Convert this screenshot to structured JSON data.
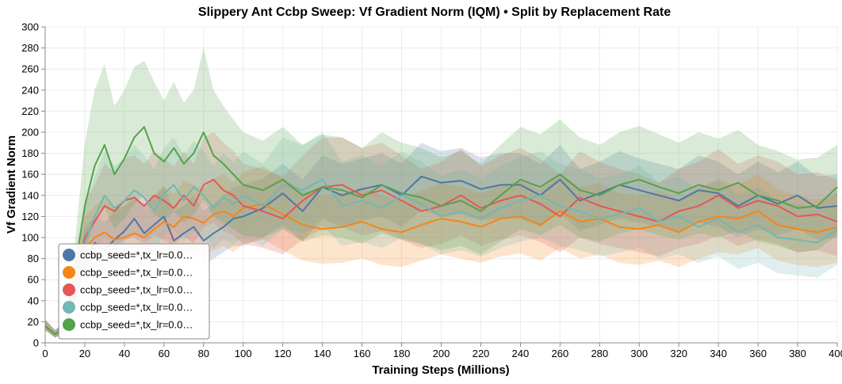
{
  "chart_data": {
    "type": "line",
    "title": "Slippery Ant Ccbp Sweep: Vf Gradient Norm (IQM) • Split by Replacement Rate",
    "xlabel": "Training Steps (Millions)",
    "ylabel": "Vf Gradient Norm",
    "xlim": [
      0,
      400
    ],
    "ylim": [
      0,
      300
    ],
    "x_ticks": [
      "0",
      "20",
      "40",
      "60",
      "80",
      "100",
      "120",
      "140",
      "160",
      "180",
      "200",
      "220",
      "240",
      "260",
      "280",
      "300",
      "320",
      "340",
      "360",
      "380",
      "400"
    ],
    "y_ticks": [
      "0",
      "20",
      "40",
      "60",
      "80",
      "100",
      "120",
      "140",
      "160",
      "180",
      "200",
      "220",
      "240",
      "260",
      "280",
      "300"
    ],
    "grid": true,
    "legend_position": "bottom-left",
    "series": [
      {
        "name": "ccbp_seed=*,tx_lr=0.0…",
        "color": "#4c78a8",
        "x": [
          0,
          5,
          10,
          15,
          20,
          25,
          30,
          35,
          40,
          45,
          50,
          55,
          60,
          65,
          70,
          75,
          80,
          85,
          90,
          95,
          100,
          110,
          120,
          130,
          140,
          150,
          160,
          170,
          180,
          190,
          200,
          210,
          220,
          230,
          240,
          250,
          260,
          270,
          280,
          290,
          300,
          310,
          320,
          330,
          340,
          350,
          360,
          370,
          380,
          390,
          400
        ],
        "values": [
          16,
          8,
          15,
          45,
          75,
          95,
          88,
          98,
          106,
          118,
          104,
          112,
          120,
          97,
          104,
          110,
          97,
          104,
          110,
          118,
          120,
          128,
          142,
          125,
          148,
          140,
          146,
          150,
          140,
          158,
          152,
          154,
          146,
          150,
          150,
          140,
          155,
          135,
          142,
          150,
          145,
          140,
          135,
          145,
          142,
          130,
          140,
          132,
          140,
          128,
          130
        ],
        "upper": [
          22,
          12,
          20,
          60,
          110,
          120,
          115,
          125,
          130,
          140,
          130,
          138,
          150,
          125,
          130,
          140,
          125,
          132,
          140,
          148,
          150,
          156,
          170,
          155,
          178,
          170,
          175,
          180,
          170,
          190,
          182,
          185,
          176,
          180,
          180,
          170,
          188,
          165,
          172,
          182,
          175,
          170,
          165,
          178,
          172,
          160,
          172,
          162,
          172,
          158,
          160
        ],
        "lower": [
          12,
          5,
          10,
          30,
          50,
          72,
          68,
          76,
          82,
          92,
          80,
          88,
          95,
          74,
          80,
          85,
          74,
          80,
          86,
          92,
          92,
          100,
          112,
          96,
          118,
          110,
          116,
          120,
          110,
          126,
          120,
          122,
          116,
          118,
          118,
          110,
          124,
          106,
          112,
          118,
          114,
          110,
          105,
          114,
          110,
          100,
          108,
          102,
          108,
          98,
          100
        ]
      },
      {
        "name": "ccbp_seed=*,tx_lr=0.0…",
        "color": "#f58518",
        "x": [
          0,
          5,
          10,
          15,
          20,
          25,
          30,
          35,
          40,
          45,
          50,
          55,
          60,
          65,
          70,
          75,
          80,
          85,
          90,
          95,
          100,
          110,
          120,
          130,
          140,
          150,
          160,
          170,
          180,
          190,
          200,
          210,
          220,
          230,
          240,
          250,
          260,
          270,
          280,
          290,
          300,
          310,
          320,
          330,
          340,
          350,
          360,
          370,
          380,
          390,
          400
        ],
        "values": [
          16,
          8,
          15,
          55,
          90,
          100,
          105,
          98,
          100,
          104,
          100,
          108,
          115,
          110,
          120,
          118,
          114,
          122,
          125,
          120,
          128,
          132,
          122,
          112,
          108,
          110,
          115,
          108,
          105,
          112,
          118,
          115,
          110,
          118,
          120,
          112,
          125,
          115,
          118,
          110,
          108,
          112,
          105,
          115,
          120,
          118,
          125,
          112,
          108,
          105,
          110
        ],
        "upper": [
          22,
          12,
          20,
          75,
          120,
          130,
          138,
          128,
          130,
          136,
          130,
          140,
          148,
          142,
          154,
          150,
          146,
          156,
          160,
          152,
          162,
          168,
          156,
          145,
          140,
          142,
          148,
          140,
          136,
          145,
          152,
          148,
          142,
          150,
          154,
          145,
          160,
          148,
          152,
          142,
          140,
          145,
          136,
          148,
          154,
          150,
          160,
          146,
          140,
          136,
          142
        ],
        "lower": [
          12,
          5,
          10,
          38,
          65,
          72,
          76,
          70,
          72,
          76,
          72,
          78,
          84,
          80,
          88,
          86,
          82,
          88,
          92,
          86,
          94,
          98,
          88,
          78,
          75,
          76,
          80,
          74,
          72,
          78,
          84,
          80,
          76,
          82,
          85,
          78,
          90,
          80,
          84,
          76,
          74,
          78,
          72,
          80,
          86,
          84,
          90,
          78,
          74,
          72,
          76
        ]
      },
      {
        "name": "ccbp_seed=*,tx_lr=0.0…",
        "color": "#e45756",
        "x": [
          0,
          5,
          10,
          15,
          20,
          25,
          30,
          35,
          40,
          45,
          50,
          55,
          60,
          65,
          70,
          75,
          80,
          85,
          90,
          95,
          100,
          110,
          120,
          130,
          140,
          150,
          160,
          170,
          180,
          190,
          200,
          210,
          220,
          230,
          240,
          250,
          260,
          270,
          280,
          290,
          300,
          310,
          320,
          330,
          340,
          350,
          360,
          370,
          380,
          390,
          400
        ],
        "values": [
          16,
          8,
          15,
          60,
          100,
          115,
          130,
          125,
          135,
          138,
          130,
          140,
          135,
          128,
          140,
          130,
          150,
          155,
          145,
          140,
          130,
          125,
          118,
          135,
          148,
          150,
          140,
          145,
          135,
          125,
          130,
          140,
          128,
          135,
          140,
          132,
          120,
          138,
          130,
          125,
          120,
          115,
          125,
          130,
          140,
          128,
          135,
          130,
          120,
          122,
          115
        ],
        "upper": [
          22,
          12,
          20,
          80,
          135,
          150,
          170,
          162,
          175,
          178,
          170,
          182,
          175,
          168,
          182,
          170,
          195,
          200,
          190,
          182,
          170,
          165,
          158,
          178,
          195,
          195,
          185,
          190,
          178,
          165,
          172,
          184,
          168,
          178,
          185,
          175,
          160,
          182,
          172,
          165,
          160,
          152,
          165,
          172,
          184,
          170,
          178,
          172,
          160,
          162,
          155
        ],
        "lower": [
          12,
          5,
          10,
          42,
          70,
          82,
          95,
          90,
          98,
          100,
          94,
          102,
          98,
          92,
          102,
          94,
          110,
          114,
          106,
          102,
          94,
          90,
          84,
          98,
          108,
          110,
          102,
          106,
          98,
          90,
          94,
          102,
          92,
          98,
          102,
          96,
          86,
          100,
          94,
          90,
          86,
          82,
          90,
          94,
          102,
          92,
          98,
          94,
          86,
          88,
          82
        ]
      },
      {
        "name": "ccbp_seed=*,tx_lr=0.0…",
        "color": "#72b7b2",
        "x": [
          0,
          5,
          10,
          15,
          20,
          25,
          30,
          35,
          40,
          45,
          50,
          55,
          60,
          65,
          70,
          75,
          80,
          85,
          90,
          95,
          100,
          110,
          120,
          130,
          140,
          150,
          160,
          170,
          180,
          190,
          200,
          210,
          220,
          230,
          240,
          250,
          260,
          270,
          280,
          290,
          300,
          310,
          320,
          330,
          340,
          350,
          360,
          370,
          380,
          390,
          400
        ],
        "values": [
          16,
          8,
          15,
          58,
          95,
          120,
          140,
          128,
          135,
          145,
          138,
          125,
          142,
          150,
          135,
          148,
          140,
          128,
          138,
          132,
          140,
          130,
          150,
          145,
          155,
          130,
          135,
          128,
          140,
          132,
          120,
          125,
          118,
          128,
          135,
          140,
          130,
          125,
          118,
          122,
          128,
          115,
          120,
          110,
          118,
          105,
          112,
          100,
          98,
          95,
          108
        ],
        "upper": [
          22,
          12,
          20,
          78,
          128,
          158,
          182,
          168,
          175,
          188,
          178,
          165,
          185,
          195,
          178,
          192,
          182,
          168,
          180,
          172,
          182,
          170,
          195,
          188,
          200,
          172,
          178,
          168,
          182,
          172,
          158,
          165,
          156,
          168,
          176,
          182,
          170,
          165,
          156,
          160,
          168,
          152,
          158,
          146,
          156,
          140,
          148,
          135,
          132,
          128,
          145
        ],
        "lower": [
          12,
          5,
          10,
          40,
          66,
          85,
          100,
          92,
          96,
          104,
          98,
          88,
          102,
          108,
          96,
          106,
          100,
          90,
          98,
          94,
          100,
          92,
          108,
          104,
          112,
          92,
          96,
          90,
          100,
          94,
          84,
          88,
          82,
          90,
          96,
          100,
          92,
          88,
          82,
          86,
          90,
          80,
          84,
          76,
          82,
          70,
          76,
          66,
          64,
          62,
          74
        ]
      },
      {
        "name": "ccbp_seed=*,tx_lr=0.0…",
        "color": "#54a24b",
        "x": [
          0,
          5,
          10,
          15,
          20,
          25,
          30,
          35,
          40,
          45,
          50,
          55,
          60,
          65,
          70,
          75,
          80,
          85,
          90,
          95,
          100,
          110,
          120,
          130,
          140,
          150,
          160,
          170,
          180,
          190,
          200,
          210,
          220,
          230,
          240,
          250,
          260,
          270,
          280,
          290,
          300,
          310,
          320,
          330,
          340,
          350,
          360,
          370,
          380,
          390,
          400
        ],
        "values": [
          16,
          8,
          15,
          70,
          130,
          168,
          188,
          160,
          175,
          195,
          205,
          180,
          172,
          185,
          170,
          180,
          200,
          178,
          170,
          160,
          150,
          145,
          155,
          140,
          148,
          145,
          138,
          150,
          142,
          138,
          130,
          135,
          125,
          140,
          155,
          148,
          160,
          145,
          140,
          150,
          155,
          148,
          142,
          150,
          145,
          152,
          140,
          135,
          128,
          130,
          148
        ],
        "upper": [
          22,
          12,
          20,
          95,
          190,
          240,
          265,
          225,
          240,
          262,
          268,
          248,
          230,
          248,
          228,
          240,
          280,
          240,
          225,
          212,
          200,
          192,
          205,
          188,
          198,
          195,
          185,
          200,
          190,
          185,
          176,
          182,
          170,
          188,
          205,
          198,
          212,
          195,
          188,
          200,
          206,
          198,
          190,
          200,
          194,
          202,
          188,
          182,
          174,
          176,
          188
        ],
        "lower": [
          12,
          5,
          10,
          48,
          88,
          115,
          128,
          108,
          118,
          132,
          140,
          122,
          116,
          125,
          114,
          122,
          136,
          120,
          114,
          108,
          102,
          100,
          108,
          96,
          102,
          100,
          94,
          104,
          98,
          94,
          88,
          92,
          84,
          96,
          108,
          102,
          112,
          100,
          96,
          104,
          108,
          102,
          98,
          104,
          100,
          106,
          96,
          92,
          86,
          88,
          102
        ]
      }
    ]
  }
}
